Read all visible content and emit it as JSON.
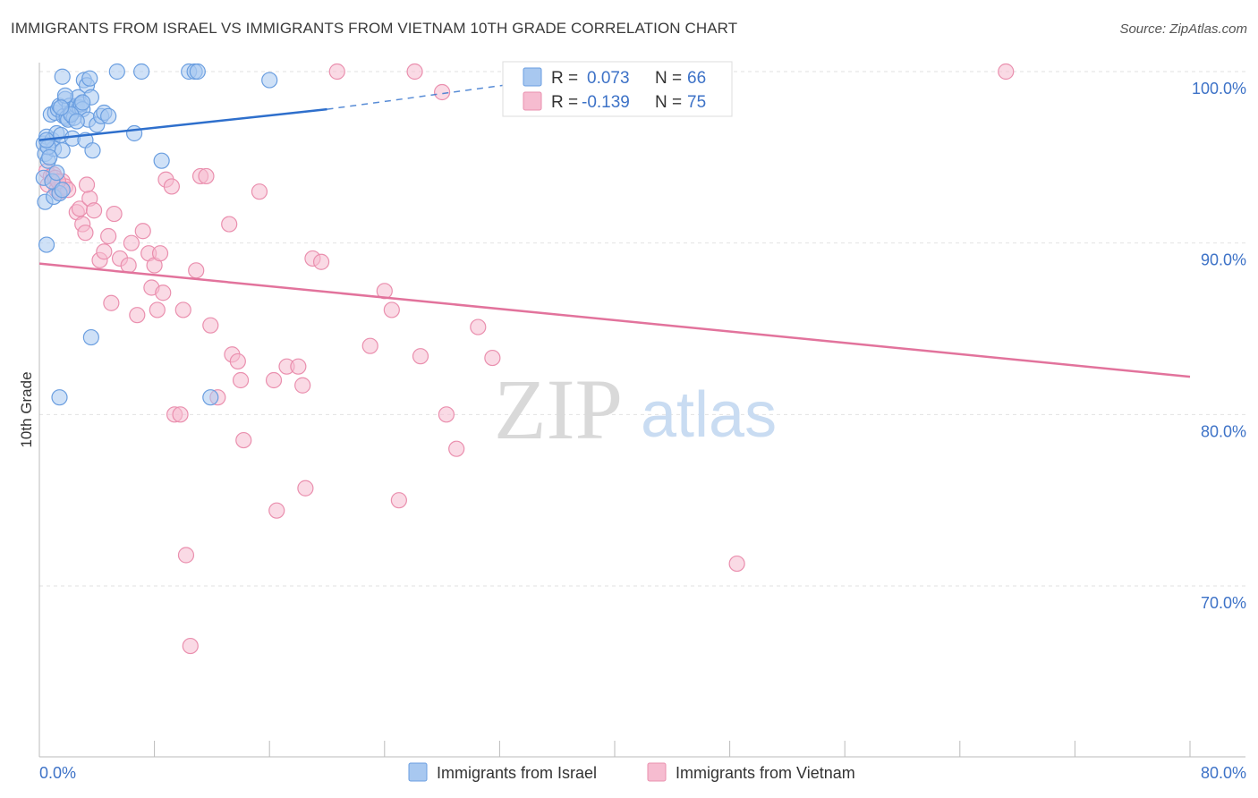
{
  "chart_data": {
    "type": "scatter",
    "title": "IMMIGRANTS FROM ISRAEL VS IMMIGRANTS FROM VIETNAM 10TH GRADE CORRELATION CHART",
    "source": "Source: ZipAtlas.com",
    "xlabel": "",
    "ylabel": "10th Grade",
    "xlim": [
      0,
      80
    ],
    "ylim": [
      60.5,
      100.8
    ],
    "x_tick_labels": {
      "min": "0.0%",
      "max": "80.0%"
    },
    "y_ticks": [
      {
        "value": 100,
        "label": "100.0%"
      },
      {
        "value": 90,
        "label": "90.0%"
      },
      {
        "value": 80,
        "label": "80.0%"
      },
      {
        "value": 70,
        "label": "70.0%"
      }
    ],
    "grid": true,
    "watermark": {
      "part1": "ZIP",
      "part2": "atlas"
    },
    "colors": {
      "israel_fill": "#a8c8f0",
      "israel_stroke": "#6a9ee0",
      "israel_line": "#2e6fcc",
      "vietnam_fill": "#f6bcd0",
      "vietnam_stroke": "#ea8fae",
      "vietnam_line": "#e2739c",
      "tick_label": "#3d72c7",
      "grid": "#e2e2e2"
    },
    "stats": {
      "r_label": "R =",
      "n_label": "N ="
    },
    "series": [
      {
        "name": "Immigrants from Israel",
        "r": "0.073",
        "n": "66",
        "trend": {
          "x0": 0,
          "y0": 96.0,
          "x1": 20,
          "y1": 97.8,
          "dash_x1": 34,
          "dash_y1": 99.4
        },
        "points": [
          [
            0.3,
            95.8
          ],
          [
            0.4,
            95.2
          ],
          [
            0.5,
            96.2
          ],
          [
            0.6,
            94.8
          ],
          [
            0.3,
            93.8
          ],
          [
            0.4,
            92.4
          ],
          [
            0.5,
            89.9
          ],
          [
            0.8,
            97.5
          ],
          [
            0.9,
            96.0
          ],
          [
            1.0,
            95.5
          ],
          [
            1.1,
            97.6
          ],
          [
            1.2,
            96.4
          ],
          [
            1.3,
            97.8
          ],
          [
            1.4,
            98.0
          ],
          [
            1.5,
            96.3
          ],
          [
            1.6,
            95.4
          ],
          [
            1.7,
            97.4
          ],
          [
            1.8,
            98.4
          ],
          [
            1.9,
            97.3
          ],
          [
            2.0,
            97.2
          ],
          [
            2.1,
            98.0
          ],
          [
            2.2,
            97.6
          ],
          [
            2.3,
            96.1
          ],
          [
            2.4,
            97.3
          ],
          [
            2.5,
            97.9
          ],
          [
            2.6,
            98.0
          ],
          [
            2.7,
            98.5
          ],
          [
            2.8,
            97.9
          ],
          [
            2.9,
            98.1
          ],
          [
            3.0,
            97.8
          ],
          [
            3.1,
            99.5
          ],
          [
            3.2,
            96.0
          ],
          [
            3.3,
            99.2
          ],
          [
            3.4,
            97.2
          ],
          [
            3.5,
            99.6
          ],
          [
            3.6,
            98.5
          ],
          [
            3.7,
            95.4
          ],
          [
            4.0,
            96.9
          ],
          [
            4.3,
            97.4
          ],
          [
            4.5,
            97.6
          ],
          [
            4.8,
            97.4
          ],
          [
            5.4,
            100.0
          ],
          [
            6.6,
            96.4
          ],
          [
            7.1,
            100.0
          ],
          [
            8.5,
            94.8
          ],
          [
            10.4,
            100.0
          ],
          [
            10.8,
            100.0
          ],
          [
            11.0,
            100.0
          ],
          [
            1.6,
            99.7
          ],
          [
            16.0,
            99.5
          ],
          [
            0.6,
            95.6
          ],
          [
            1.0,
            92.7
          ],
          [
            1.4,
            92.9
          ],
          [
            1.8,
            98.6
          ],
          [
            2.2,
            97.5
          ],
          [
            2.6,
            97.1
          ],
          [
            3.0,
            98.2
          ],
          [
            0.9,
            93.6
          ],
          [
            1.2,
            94.1
          ],
          [
            1.6,
            93.1
          ],
          [
            3.6,
            84.5
          ],
          [
            1.4,
            81.0
          ],
          [
            11.9,
            81.0
          ],
          [
            0.7,
            95.0
          ],
          [
            1.5,
            97.9
          ],
          [
            0.5,
            96.0
          ]
        ]
      },
      {
        "name": "Immigrants from Vietnam",
        "r": "-0.139",
        "n": "75",
        "trend": {
          "x0": 0,
          "y0": 88.8,
          "x1": 80,
          "y1": 82.2
        },
        "points": [
          [
            0.5,
            94.2
          ],
          [
            0.6,
            93.4
          ],
          [
            0.8,
            93.9
          ],
          [
            1.0,
            94.0
          ],
          [
            1.1,
            93.8
          ],
          [
            1.2,
            93.1
          ],
          [
            1.4,
            93.0
          ],
          [
            1.5,
            93.2
          ],
          [
            1.6,
            93.6
          ],
          [
            1.8,
            93.3
          ],
          [
            2.0,
            93.1
          ],
          [
            2.6,
            91.8
          ],
          [
            2.8,
            92.0
          ],
          [
            3.0,
            91.1
          ],
          [
            3.2,
            90.6
          ],
          [
            3.5,
            92.6
          ],
          [
            3.8,
            91.9
          ],
          [
            4.2,
            89.0
          ],
          [
            4.5,
            89.5
          ],
          [
            4.8,
            90.4
          ],
          [
            5.2,
            91.7
          ],
          [
            5.6,
            89.1
          ],
          [
            6.2,
            88.7
          ],
          [
            6.4,
            90.0
          ],
          [
            6.8,
            85.8
          ],
          [
            7.2,
            90.7
          ],
          [
            7.6,
            89.4
          ],
          [
            7.8,
            87.4
          ],
          [
            8.0,
            88.7
          ],
          [
            8.2,
            86.1
          ],
          [
            8.4,
            89.4
          ],
          [
            8.6,
            87.1
          ],
          [
            8.8,
            93.7
          ],
          [
            9.2,
            93.3
          ],
          [
            9.4,
            80.0
          ],
          [
            9.8,
            80.0
          ],
          [
            10.0,
            86.1
          ],
          [
            10.2,
            71.8
          ],
          [
            10.5,
            66.5
          ],
          [
            10.9,
            88.4
          ],
          [
            11.2,
            93.9
          ],
          [
            11.6,
            93.9
          ],
          [
            11.9,
            85.2
          ],
          [
            12.4,
            81.0
          ],
          [
            13.2,
            91.1
          ],
          [
            13.4,
            83.5
          ],
          [
            13.8,
            83.1
          ],
          [
            14.0,
            82.0
          ],
          [
            14.2,
            78.5
          ],
          [
            15.3,
            93.0
          ],
          [
            16.3,
            82.0
          ],
          [
            16.5,
            74.4
          ],
          [
            17.2,
            82.8
          ],
          [
            18.0,
            82.8
          ],
          [
            18.3,
            81.7
          ],
          [
            18.5,
            75.7
          ],
          [
            19.0,
            89.1
          ],
          [
            19.6,
            88.9
          ],
          [
            20.7,
            100.0
          ],
          [
            23.0,
            84.0
          ],
          [
            24.0,
            87.2
          ],
          [
            24.5,
            86.1
          ],
          [
            25.0,
            75.0
          ],
          [
            26.1,
            100.0
          ],
          [
            26.5,
            83.4
          ],
          [
            28.0,
            98.8
          ],
          [
            28.3,
            80.0
          ],
          [
            29.0,
            78.0
          ],
          [
            30.5,
            85.1
          ],
          [
            31.5,
            83.3
          ],
          [
            48.5,
            71.3
          ],
          [
            67.2,
            100.0
          ],
          [
            1.3,
            93.6
          ],
          [
            3.3,
            93.4
          ],
          [
            5.0,
            86.5
          ]
        ]
      }
    ]
  }
}
